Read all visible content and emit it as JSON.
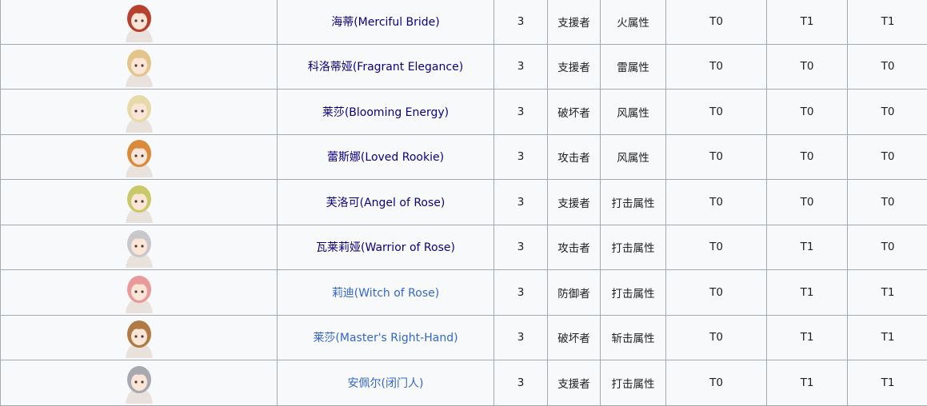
{
  "colors": {
    "visited_link": "#0b0080",
    "link": "#3366cc",
    "border": "#a2a9b1",
    "cell_bg": "#f8f9fa"
  },
  "rows": [
    {
      "name": "海蒂(Merciful Bride)",
      "rarity": "3",
      "role": "支援者",
      "attribute": "火属性",
      "t1": "T0",
      "t2": "T1",
      "t3": "T1",
      "visited": true,
      "hair": "#b8402e"
    },
    {
      "name": "科洛蒂娅(Fragrant Elegance)",
      "rarity": "3",
      "role": "支援者",
      "attribute": "雷属性",
      "t1": "T0",
      "t2": "T0",
      "t3": "T0",
      "visited": true,
      "hair": "#e3c48a"
    },
    {
      "name": "莱莎(Blooming Energy)",
      "rarity": "3",
      "role": "破坏者",
      "attribute": "风属性",
      "t1": "T0",
      "t2": "T0",
      "t3": "T0",
      "visited": true,
      "hair": "#e8d9a8"
    },
    {
      "name": "蕾斯娜(Loved Rookie)",
      "rarity": "3",
      "role": "攻击者",
      "attribute": "风属性",
      "t1": "T0",
      "t2": "T0",
      "t3": "T0",
      "visited": true,
      "hair": "#d98a3a"
    },
    {
      "name": "芙洛可(Angel of Rose)",
      "rarity": "3",
      "role": "支援者",
      "attribute": "打击属性",
      "t1": "T0",
      "t2": "T0",
      "t3": "T0",
      "visited": true,
      "hair": "#c9c96a"
    },
    {
      "name": "瓦莱莉娅(Warrior of Rose)",
      "rarity": "3",
      "role": "攻击者",
      "attribute": "打击属性",
      "t1": "T0",
      "t2": "T1",
      "t3": "T0",
      "visited": true,
      "hair": "#c8c8cc"
    },
    {
      "name": "莉迪(Witch of Rose)",
      "rarity": "3",
      "role": "防御者",
      "attribute": "打击属性",
      "t1": "T0",
      "t2": "T1",
      "t3": "T1",
      "visited": false,
      "hair": "#e89a9a"
    },
    {
      "name": "莱莎(Master's Right-Hand)",
      "rarity": "3",
      "role": "破坏者",
      "attribute": "斩击属性",
      "t1": "T0",
      "t2": "T1",
      "t3": "T1",
      "visited": false,
      "hair": "#b07a45"
    },
    {
      "name": "安佩尔(闭门人)",
      "rarity": "3",
      "role": "支援者",
      "attribute": "打击属性",
      "t1": "T0",
      "t2": "T1",
      "t3": "T1",
      "visited": false,
      "hair": "#a8a8b0"
    }
  ]
}
